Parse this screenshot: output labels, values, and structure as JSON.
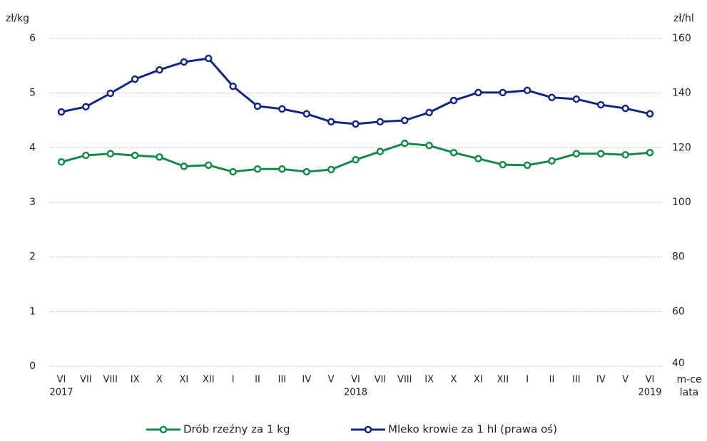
{
  "chart_data": {
    "type": "line",
    "y_label": "zł/kg",
    "y2_label": "zł/hl",
    "x_label": "m-ce",
    "x_group_label": "lata",
    "categories": [
      "VI",
      "VII",
      "VIII",
      "IX",
      "X",
      "XI",
      "XII",
      "I",
      "II",
      "III",
      "IV",
      "V",
      "VI",
      "VII",
      "VIII",
      "IX",
      "X",
      "XI",
      "XII",
      "I",
      "II",
      "III",
      "IV",
      "V",
      "VI"
    ],
    "x_groups": [
      {
        "label": "2017",
        "at": 0
      },
      {
        "label": "2018",
        "at": 12
      },
      {
        "label": "2019",
        "at": 24
      }
    ],
    "series": [
      {
        "name": "Drób rzeźny za 1 kg",
        "color": "#16894a",
        "axis": "y",
        "values": [
          3.74,
          3.86,
          3.89,
          3.86,
          3.83,
          3.66,
          3.68,
          3.56,
          3.61,
          3.61,
          3.56,
          3.6,
          3.78,
          3.93,
          4.08,
          4.04,
          3.91,
          3.8,
          3.69,
          3.68,
          3.76,
          3.89,
          3.89,
          3.87,
          3.91
        ]
      },
      {
        "name": "Mleko krowie za 1 hl (prawa oś)",
        "color": "#12277f",
        "axis": "y2",
        "values": [
          133.1,
          135.0,
          139.9,
          145.1,
          148.5,
          151.4,
          152.7,
          142.5,
          135.2,
          134.2,
          132.4,
          129.5,
          128.7,
          129.5,
          130.0,
          132.9,
          137.3,
          140.2,
          140.2,
          141.0,
          138.4,
          137.8,
          135.7,
          134.4,
          132.4
        ]
      }
    ],
    "ylim": [
      0,
      6
    ],
    "yticks": [
      0,
      1,
      2,
      3,
      4,
      5,
      6
    ],
    "y2lim": [
      40,
      160
    ],
    "y2ticks": [
      40,
      60,
      80,
      100,
      120,
      140,
      160
    ],
    "grid": true,
    "legend": "bottom"
  }
}
